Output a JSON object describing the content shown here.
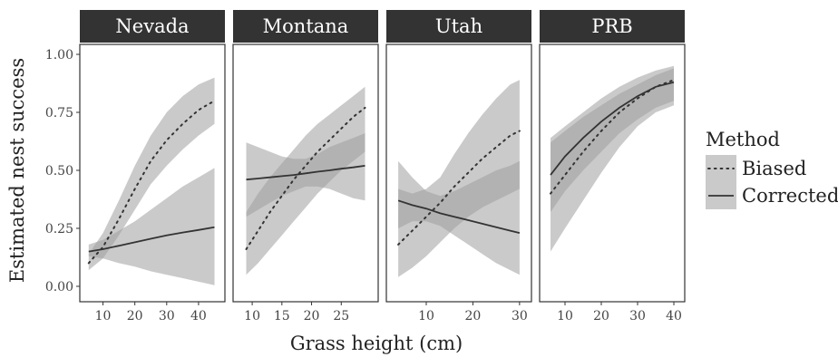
{
  "chart_data": {
    "type": "line",
    "ylabel": "Estimated nest success",
    "xlabel": "Grass height (cm)",
    "ylim": [
      0,
      1
    ],
    "yticks": [
      0,
      0.25,
      0.5,
      0.75,
      1.0
    ],
    "ytick_labels": [
      "0.00",
      "0.25",
      "0.50",
      "0.75",
      "1.00"
    ],
    "grid": false,
    "legend": {
      "title": "Method",
      "position": "right",
      "entries": [
        {
          "name": "Biased",
          "style": "dotted"
        },
        {
          "name": "Corrected",
          "style": "solid"
        }
      ]
    },
    "colors": {
      "strip": "#333333",
      "strip_text": "#ffffff",
      "ribbon": "#9e9e9e",
      "line": "#333333",
      "panel_border": "#333333"
    },
    "panels": [
      {
        "title": "Nevada",
        "xlim": [
          5,
          46
        ],
        "xticks": [
          10,
          20,
          30,
          40
        ],
        "series": [
          {
            "name": "Biased",
            "style": "dotted",
            "x": [
              5.5,
              10,
              15,
              20,
              25,
              30,
              35,
              40,
              45
            ],
            "y": [
              0.1,
              0.17,
              0.29,
              0.42,
              0.54,
              0.63,
              0.7,
              0.76,
              0.8
            ],
            "lower": [
              0.07,
              0.12,
              0.22,
              0.33,
              0.44,
              0.52,
              0.59,
              0.65,
              0.7
            ],
            "upper": [
              0.14,
              0.23,
              0.37,
              0.52,
              0.65,
              0.75,
              0.82,
              0.87,
              0.9
            ]
          },
          {
            "name": "Corrected",
            "style": "solid",
            "x": [
              5.5,
              10,
              15,
              20,
              25,
              30,
              35,
              40,
              45
            ],
            "y": [
              0.15,
              0.16,
              0.175,
              0.19,
              0.205,
              0.22,
              0.232,
              0.243,
              0.255
            ],
            "lower": [
              0.13,
              0.12,
              0.1,
              0.085,
              0.065,
              0.05,
              0.035,
              0.02,
              0.005
            ],
            "upper": [
              0.18,
              0.2,
              0.24,
              0.28,
              0.33,
              0.38,
              0.43,
              0.47,
              0.51
            ]
          }
        ]
      },
      {
        "title": "Montana",
        "xlim": [
          8,
          30
        ],
        "xticks": [
          10,
          15,
          20,
          25
        ],
        "series": [
          {
            "name": "Biased",
            "style": "dotted",
            "x": [
              9,
              11,
              13,
              15,
              17,
              19,
              21,
              23,
              25,
              27,
              29
            ],
            "y": [
              0.16,
              0.24,
              0.32,
              0.39,
              0.46,
              0.52,
              0.58,
              0.63,
              0.68,
              0.73,
              0.77
            ],
            "lower": [
              0.05,
              0.1,
              0.16,
              0.22,
              0.28,
              0.34,
              0.4,
              0.45,
              0.5,
              0.54,
              0.58
            ],
            "upper": [
              0.32,
              0.4,
              0.47,
              0.53,
              0.59,
              0.65,
              0.7,
              0.74,
              0.78,
              0.82,
              0.86
            ]
          },
          {
            "name": "Corrected",
            "style": "solid",
            "x": [
              9,
              11,
              13,
              15,
              17,
              19,
              21,
              23,
              25,
              27,
              29
            ],
            "y": [
              0.46,
              0.465,
              0.47,
              0.475,
              0.48,
              0.487,
              0.494,
              0.5,
              0.507,
              0.513,
              0.52
            ],
            "lower": [
              0.3,
              0.33,
              0.36,
              0.39,
              0.41,
              0.43,
              0.43,
              0.42,
              0.4,
              0.38,
              0.37
            ],
            "upper": [
              0.62,
              0.6,
              0.58,
              0.56,
              0.55,
              0.55,
              0.57,
              0.6,
              0.62,
              0.64,
              0.66
            ]
          }
        ]
      },
      {
        "title": "Utah",
        "xlim": [
          3,
          31
        ],
        "xticks": [
          10,
          20,
          30
        ],
        "series": [
          {
            "name": "Biased",
            "style": "dotted",
            "x": [
              4,
              7,
              10,
              13,
              16,
              19,
              22,
              25,
              28,
              30
            ],
            "y": [
              0.18,
              0.24,
              0.3,
              0.36,
              0.43,
              0.49,
              0.55,
              0.6,
              0.65,
              0.67
            ],
            "lower": [
              0.04,
              0.08,
              0.13,
              0.19,
              0.25,
              0.3,
              0.34,
              0.37,
              0.4,
              0.42
            ],
            "upper": [
              0.42,
              0.4,
              0.42,
              0.47,
              0.57,
              0.66,
              0.74,
              0.81,
              0.87,
              0.89
            ]
          },
          {
            "name": "Corrected",
            "style": "solid",
            "x": [
              4,
              7,
              10,
              13,
              16,
              19,
              22,
              25,
              28,
              30
            ],
            "y": [
              0.37,
              0.35,
              0.335,
              0.315,
              0.3,
              0.285,
              0.27,
              0.255,
              0.24,
              0.23
            ],
            "lower": [
              0.25,
              0.28,
              0.28,
              0.26,
              0.22,
              0.18,
              0.14,
              0.1,
              0.07,
              0.05
            ],
            "upper": [
              0.54,
              0.47,
              0.41,
              0.39,
              0.41,
              0.44,
              0.47,
              0.5,
              0.52,
              0.54
            ]
          }
        ]
      },
      {
        "title": "PRB",
        "xlim": [
          5,
          41
        ],
        "xticks": [
          10,
          20,
          30,
          40
        ],
        "series": [
          {
            "name": "Biased",
            "style": "dotted",
            "x": [
              6,
              10,
              15,
              20,
              25,
              30,
              35,
              40
            ],
            "y": [
              0.4,
              0.48,
              0.58,
              0.67,
              0.75,
              0.81,
              0.86,
              0.89
            ],
            "lower": [
              0.15,
              0.25,
              0.37,
              0.49,
              0.6,
              0.69,
              0.75,
              0.78
            ],
            "upper": [
              0.64,
              0.69,
              0.75,
              0.81,
              0.86,
              0.9,
              0.93,
              0.95
            ]
          },
          {
            "name": "Corrected",
            "style": "solid",
            "x": [
              6,
              10,
              15,
              20,
              25,
              30,
              35,
              40
            ],
            "y": [
              0.48,
              0.56,
              0.64,
              0.71,
              0.77,
              0.82,
              0.86,
              0.88
            ],
            "lower": [
              0.32,
              0.41,
              0.5,
              0.58,
              0.66,
              0.72,
              0.77,
              0.8
            ],
            "upper": [
              0.62,
              0.67,
              0.73,
              0.78,
              0.83,
              0.87,
              0.91,
              0.94
            ]
          }
        ]
      }
    ]
  }
}
